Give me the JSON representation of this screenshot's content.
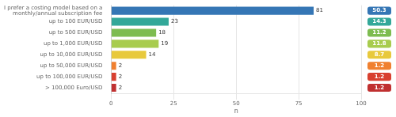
{
  "chart_data": {
    "type": "bar",
    "orientation": "horizontal",
    "categories": [
      "I prefer a costing model based on a\nmonthly/annual subscription fee",
      "up to 100 EUR/USD",
      "up to 500 EUR/USD",
      "up to 1,000 EUR/USD",
      "up to 10,000 EUR/USD",
      "up to 50,000 EUR/USD",
      "up to 100,000 EUR/USD",
      "> 100,000 Euro/USD"
    ],
    "values": [
      81,
      23,
      18,
      19,
      14,
      2,
      2,
      2
    ],
    "percentages": [
      50.3,
      14.3,
      11.2,
      11.8,
      8.7,
      1.2,
      1.2,
      1.2
    ],
    "colors": [
      "#3576b5",
      "#33a899",
      "#7dbc50",
      "#a8cc4e",
      "#e8c93c",
      "#f08030",
      "#d84030",
      "#c03030"
    ],
    "xlabel": "n",
    "xlim": [
      0,
      100
    ],
    "xticks": [
      0,
      25,
      50,
      75,
      100
    ],
    "grid": true,
    "data_labels": true
  }
}
